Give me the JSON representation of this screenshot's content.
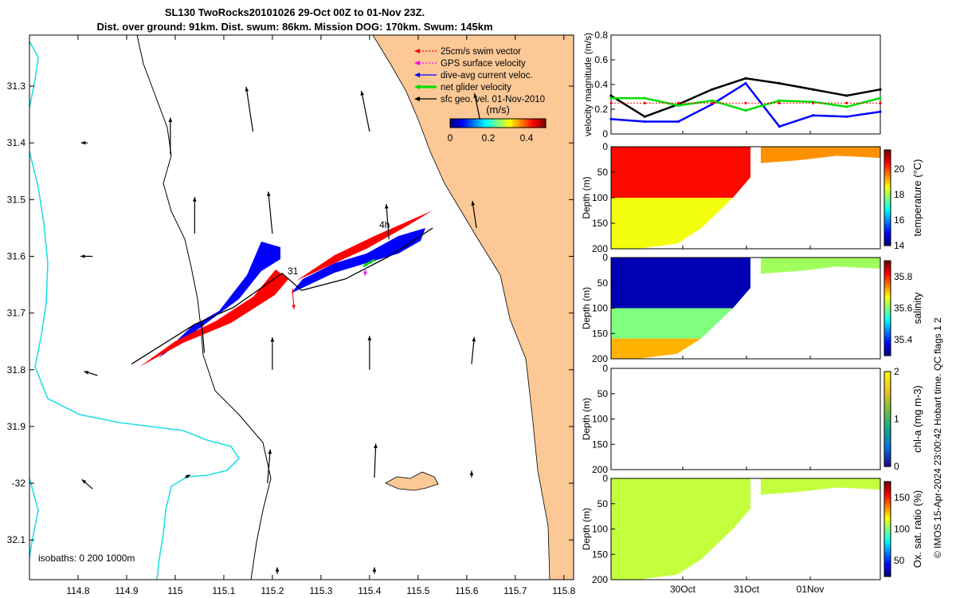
{
  "title": {
    "line1": "SL130 TwoRocks20101026 29-Oct 00Z to 01-Nov 23Z.",
    "line2": "Dist. over ground: 91km. Dist. swum: 86km. Mission DOG: 170km. Swum: 145km"
  },
  "credit": "© IMOS 15-Apr-2024 23:00:42 Hobart time. QC flags 1  2",
  "chart_data": [
    {
      "type": "map",
      "name": "glider track map",
      "x": {
        "range": [
          114.7,
          115.82
        ],
        "ticks": [
          114.8,
          114.9,
          115.0,
          115.1,
          115.2,
          115.3,
          115.4,
          115.5,
          115.6,
          115.7,
          115.8
        ],
        "tick_labels": [
          "114.8",
          "114.9",
          "115",
          "115.1",
          "115.2",
          "115.3",
          "115.4",
          "115.5",
          "115.6",
          "115.7",
          "115.8"
        ]
      },
      "y": {
        "range": [
          -32.17,
          -31.21
        ],
        "ticks": [
          -31.3,
          -31.4,
          -31.5,
          -31.6,
          -31.7,
          -31.8,
          -31.9,
          -32.0,
          -32.1
        ],
        "tick_labels": [
          "31.3",
          "31.4",
          "31.5",
          "31.6",
          "31.7",
          "31.8",
          "31.9",
          "-32",
          "32.1"
        ]
      },
      "legend": [
        {
          "label": "25cm/s swim vector",
          "color": "#ff0000",
          "style": "dotted-arrow"
        },
        {
          "label": "GPS surface velocity",
          "color": "#ff00ff",
          "style": "dotted-arrow"
        },
        {
          "label": "dive-avg current veloc.",
          "color": "#0000ff",
          "style": "arrow"
        },
        {
          "label": "net glider velocity",
          "color": "#00dd00",
          "style": "thick-arrow"
        },
        {
          "label": "sfc geo. vel. 01-Nov-2010",
          "color": "#000000",
          "style": "arrow"
        }
      ],
      "colorbar": {
        "label": "(m/s)",
        "ticks": [
          "0",
          "0.2",
          "0.4"
        ],
        "range": [
          0,
          0.5
        ],
        "colormap": "jet"
      },
      "isobaths_label": "isobaths: 0   200  1000m",
      "track_labels": [
        "4h",
        "31"
      ],
      "glider_track": [
        [
          114.91,
          -31.79
        ],
        [
          115.04,
          -31.72
        ],
        [
          115.12,
          -31.69
        ],
        [
          115.22,
          -31.63
        ],
        [
          115.26,
          -31.66
        ],
        [
          115.35,
          -31.64
        ],
        [
          115.44,
          -31.6
        ],
        [
          115.53,
          -31.55
        ]
      ],
      "current_vectors": [
        {
          "lon": 114.82,
          "lat": -31.4,
          "u": -0.05,
          "v": 0.0
        },
        {
          "lon": 114.99,
          "lat": -31.42,
          "u": 0.0,
          "v": 0.27
        },
        {
          "lon": 115.16,
          "lat": -31.38,
          "u": -0.05,
          "v": 0.33
        },
        {
          "lon": 115.4,
          "lat": -31.38,
          "u": -0.06,
          "v": 0.3
        },
        {
          "lon": 115.63,
          "lat": -31.37,
          "u": -0.05,
          "v": 0.24
        },
        {
          "lon": 115.04,
          "lat": -31.56,
          "u": 0.0,
          "v": 0.27
        },
        {
          "lon": 115.2,
          "lat": -31.56,
          "u": -0.03,
          "v": 0.31
        },
        {
          "lon": 115.44,
          "lat": -31.57,
          "u": -0.02,
          "v": 0.26
        },
        {
          "lon": 115.62,
          "lat": -31.55,
          "u": -0.03,
          "v": 0.2
        },
        {
          "lon": 114.83,
          "lat": -31.6,
          "u": -0.09,
          "v": 0.0
        },
        {
          "lon": 114.84,
          "lat": -31.81,
          "u": -0.1,
          "v": 0.03
        },
        {
          "lon": 115.06,
          "lat": -31.77,
          "u": -0.02,
          "v": 0.23
        },
        {
          "lon": 115.2,
          "lat": -31.8,
          "u": 0.0,
          "v": 0.24
        },
        {
          "lon": 115.4,
          "lat": -31.8,
          "u": 0.0,
          "v": 0.25
        },
        {
          "lon": 115.61,
          "lat": -31.79,
          "u": 0.02,
          "v": 0.2
        },
        {
          "lon": 114.83,
          "lat": -32.01,
          "u": -0.08,
          "v": 0.07
        },
        {
          "lon": 115.02,
          "lat": -31.99,
          "u": 0.04,
          "v": 0.02
        },
        {
          "lon": 115.19,
          "lat": -32.0,
          "u": 0.02,
          "v": 0.25
        },
        {
          "lon": 115.41,
          "lat": -31.99,
          "u": 0.01,
          "v": 0.25
        },
        {
          "lon": 115.61,
          "lat": -31.99,
          "u": 0.0,
          "v": 0.05
        },
        {
          "lon": 115.21,
          "lat": -32.16,
          "u": 0.0,
          "v": 0.05
        },
        {
          "lon": 115.41,
          "lat": -32.16,
          "u": 0.0,
          "v": 0.05
        }
      ]
    },
    {
      "type": "line",
      "name": "velocity magnitude",
      "ylabel": "velocity magnitude (m/s)",
      "ylim": [
        0,
        0.8
      ],
      "yticks": [
        "0",
        "0.2",
        "0.4",
        "0.6",
        "0.8"
      ],
      "x": [
        0,
        0.5,
        1,
        1.5,
        2,
        2.5,
        3,
        3.5,
        4
      ],
      "series": [
        {
          "name": "sfc geo. vel.",
          "color": "#000000",
          "values": [
            0.31,
            0.14,
            0.24,
            0.36,
            0.45,
            0.41,
            0.36,
            0.31,
            0.36
          ]
        },
        {
          "name": "dive-avg current",
          "color": "#0000ff",
          "values": [
            0.12,
            0.1,
            0.1,
            0.24,
            0.41,
            0.06,
            0.15,
            0.14,
            0.18
          ]
        },
        {
          "name": "net glider velocity",
          "color": "#00dd00",
          "values": [
            0.29,
            0.29,
            0.23,
            0.27,
            0.19,
            0.27,
            0.26,
            0.22,
            0.29
          ]
        },
        {
          "name": "swim speed",
          "color": "#ff0000",
          "values": [
            0.25,
            0.25,
            0.25,
            0.25,
            0.25,
            0.25,
            0.25,
            0.25,
            0.25
          ]
        }
      ]
    },
    {
      "type": "heatmap",
      "name": "temperature section",
      "ylabel": "Depth (m)",
      "ylim": [
        0,
        200
      ],
      "yticks": [
        "0",
        "50",
        "100",
        "150",
        "200"
      ],
      "colorbar": {
        "label": "temperature (°C)",
        "ticks": [
          "14",
          "16",
          "18",
          "20"
        ],
        "range": [
          14,
          21.5
        ]
      },
      "layers": [
        {
          "from_depth": 0,
          "to_depth": 100,
          "value": 20.5
        },
        {
          "from_depth": 100,
          "to_depth": 200,
          "value": 18.6
        }
      ],
      "second_segment_value": 19.5
    },
    {
      "type": "heatmap",
      "name": "salinity section",
      "ylabel": "Depth (m)",
      "ylim": [
        0,
        200
      ],
      "yticks": [
        "0",
        "50",
        "100",
        "150",
        "200"
      ],
      "colorbar": {
        "label": "salinity",
        "ticks": [
          "35.4",
          "35.6",
          "35.8"
        ],
        "range": [
          35.3,
          35.9
        ]
      },
      "layers": [
        {
          "from_depth": 0,
          "to_depth": 100,
          "value": 35.33
        },
        {
          "from_depth": 100,
          "to_depth": 160,
          "value": 35.6
        },
        {
          "from_depth": 160,
          "to_depth": 200,
          "value": 35.72
        }
      ],
      "second_segment_value": 35.62
    },
    {
      "type": "heatmap",
      "name": "chl-a section",
      "ylabel": "Depth (m)",
      "ylim": [
        0,
        200
      ],
      "yticks": [
        "0",
        "50",
        "100",
        "150",
        "200"
      ],
      "colorbar": {
        "label": "chl-a (mg m-3)",
        "ticks": [
          "0",
          "1",
          "2"
        ],
        "range": [
          0,
          2
        ]
      },
      "layers": []
    },
    {
      "type": "heatmap",
      "name": "oxygen saturation section",
      "ylabel": "Depth (m)",
      "ylim": [
        0,
        200
      ],
      "yticks": [
        "0",
        "50",
        "100",
        "150",
        "200"
      ],
      "xticks": [
        "30Oct",
        "31Oct",
        "01Nov"
      ],
      "colorbar": {
        "label": "Ox. sat. ratio (%)",
        "ticks": [
          "50",
          "100",
          "150"
        ],
        "range": [
          25,
          175
        ]
      },
      "layers": [
        {
          "from_depth": 0,
          "to_depth": 200,
          "value": 110
        }
      ],
      "second_segment_value": 110
    }
  ]
}
